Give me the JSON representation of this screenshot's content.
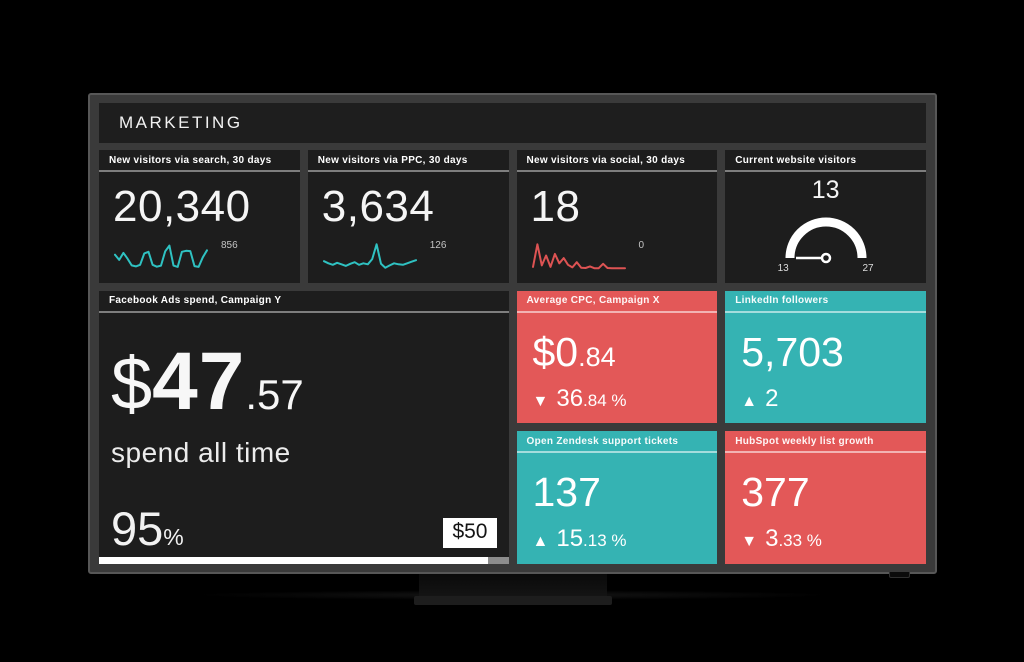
{
  "dashboard": {
    "title": "MARKETING"
  },
  "colors": {
    "teal": "#35b3b3",
    "red": "#e35858",
    "spark_teal": "#2fc2c2",
    "spark_red": "#dd5353",
    "tile_bg": "#1d1d1d",
    "screen_bg": "#3a3a3a",
    "progress_fill": "#ffffff",
    "progress_rest": "#8d8d8d"
  },
  "stat_tiles": [
    {
      "title": "New visitors via search, 30 days",
      "value": "20,340",
      "spark": {
        "label": "856",
        "color": "#2fc2c2",
        "values": [
          55,
          35,
          62,
          40,
          14,
          10,
          16,
          60,
          66,
          16,
          9,
          13,
          68,
          90,
          13,
          8,
          66,
          70,
          69,
          11,
          8,
          45,
          72
        ]
      }
    },
    {
      "title": "New visitors via PPC, 30 days",
      "value": "3,634",
      "spark": {
        "label": "126",
        "color": "#2fc2c2",
        "values": [
          30,
          22,
          16,
          24,
          18,
          12,
          20,
          26,
          16,
          22,
          18,
          38,
          95,
          20,
          5,
          14,
          22,
          18,
          16,
          22,
          28,
          34
        ]
      }
    },
    {
      "title": "New visitors via social, 30 days",
      "value": "18",
      "spark": {
        "label": "0",
        "color": "#dd5353",
        "values": [
          8,
          95,
          14,
          52,
          8,
          58,
          22,
          42,
          16,
          6,
          26,
          5,
          4,
          10,
          3,
          3,
          20,
          4,
          3,
          3,
          3,
          3
        ]
      }
    }
  ],
  "gauge_tile": {
    "title": "Current website visitors",
    "value": "13",
    "min": "13",
    "max": "27"
  },
  "spend_tile": {
    "title": "Facebook Ads spend, Campaign Y",
    "currency": "$",
    "value_int": "47",
    "value_dec": ".57",
    "caption": "spend all time",
    "percent": "95",
    "percent_sign": "%",
    "budget_label": "$50",
    "progress_pct": 95
  },
  "kpi_tiles": [
    {
      "title": "Average CPC, Campaign X",
      "value_main": "$0",
      "value_sub": ".84",
      "delta_arrow": "▼",
      "delta_main": "36",
      "delta_sub": ".84 %",
      "bg": "#e35858"
    },
    {
      "title": "LinkedIn followers",
      "value_main": "5,703",
      "value_sub": "",
      "delta_arrow": "▲",
      "delta_main": "2",
      "delta_sub": "",
      "bg": "#35b3b3"
    },
    {
      "title": "Open Zendesk support tickets",
      "value_main": "137",
      "value_sub": "",
      "delta_arrow": "▲",
      "delta_main": "15",
      "delta_sub": ".13 %",
      "bg": "#35b3b3"
    },
    {
      "title": "HubSpot weekly list growth",
      "value_main": "377",
      "value_sub": "",
      "delta_arrow": "▼",
      "delta_main": "3",
      "delta_sub": ".33 %",
      "bg": "#e35858"
    }
  ],
  "chart_data": [
    {
      "type": "line",
      "title": "New visitors via search, 30 days",
      "current_value": 20340,
      "endpoint_label": 856,
      "values_relative": [
        55,
        35,
        62,
        40,
        14,
        10,
        16,
        60,
        66,
        16,
        9,
        13,
        68,
        90,
        13,
        8,
        66,
        70,
        69,
        11,
        8,
        45,
        72
      ]
    },
    {
      "type": "line",
      "title": "New visitors via PPC, 30 days",
      "current_value": 3634,
      "endpoint_label": 126,
      "values_relative": [
        30,
        22,
        16,
        24,
        18,
        12,
        20,
        26,
        16,
        22,
        18,
        38,
        95,
        20,
        5,
        14,
        22,
        18,
        16,
        22,
        28,
        34
      ]
    },
    {
      "type": "line",
      "title": "New visitors via social, 30 days",
      "current_value": 18,
      "endpoint_label": 0,
      "values_relative": [
        8,
        95,
        14,
        52,
        8,
        58,
        22,
        42,
        16,
        6,
        26,
        5,
        4,
        10,
        3,
        3,
        20,
        4,
        3,
        3,
        3,
        3
      ]
    },
    {
      "type": "gauge",
      "title": "Current website visitors",
      "value": 13,
      "min": 13,
      "max": 27
    },
    {
      "type": "progress",
      "title": "Facebook Ads spend, Campaign Y",
      "spend": 47.57,
      "goal": 50,
      "percent": 95
    }
  ]
}
